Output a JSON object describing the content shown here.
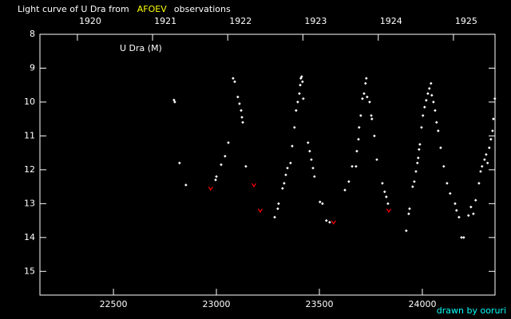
{
  "chart_data": {
    "type": "scatter",
    "title_parts": [
      {
        "text": "Light curve of U Dra from",
        "color": "#ffffff"
      },
      {
        "text": "AFOEV",
        "color": "#ffff00"
      },
      {
        "text": "observations",
        "color": "#ffffff"
      }
    ],
    "annotation": "U Dra (M)",
    "credit": "drawn by ooruri",
    "credit_color": "#00ffff",
    "xlim": [
      22143,
      24353
    ],
    "ylim": [
      15.7,
      8
    ],
    "xticks": [
      22500,
      23000,
      23500,
      24000
    ],
    "yticks": [
      8,
      9,
      10,
      11,
      12,
      13,
      14,
      15
    ],
    "x2ticks": [
      {
        "value": 22325,
        "label": "1920"
      },
      {
        "value": 22690,
        "label": "1921"
      },
      {
        "value": 23055,
        "label": "1922"
      },
      {
        "value": 23420,
        "label": "1923"
      },
      {
        "value": 23786,
        "label": "1924"
      },
      {
        "value": 24151,
        "label": "1925"
      }
    ],
    "series": [
      {
        "color": "#ffffff",
        "marker": "diamond",
        "x": [
          22794,
          22798,
          22821,
          22852,
          22996,
          23000,
          23023,
          23042,
          23058,
          23081,
          23089,
          23104,
          23112,
          23120,
          23124,
          23128,
          23143,
          23283,
          23298,
          23302,
          23321,
          23329,
          23337,
          23345,
          23360,
          23368,
          23379,
          23387,
          23395,
          23403,
          23407,
          23410,
          23414,
          23418,
          23422,
          23445,
          23453,
          23461,
          23469,
          23476,
          23503,
          23515,
          23534,
          23550,
          23624,
          23643,
          23659,
          23678,
          23682,
          23690,
          23693,
          23701,
          23709,
          23717,
          23724,
          23728,
          23732,
          23744,
          23752,
          23755,
          23767,
          23779,
          23806,
          23817,
          23825,
          23833,
          23922,
          23934,
          23938,
          23953,
          23961,
          23969,
          23976,
          23980,
          23984,
          23988,
          23996,
          24003,
          24011,
          24019,
          24027,
          24034,
          24042,
          24046,
          24054,
          24062,
          24069,
          24077,
          24089,
          24104,
          24120,
          24135,
          24159,
          24166,
          24178,
          24190,
          24201,
          24224,
          24236,
          24248,
          24259,
          24275,
          24283,
          24290,
          24302,
          24310,
          24317,
          24325,
          24333,
          24341,
          24345,
          24352
        ],
        "values": [
          9.94,
          10.0,
          11.8,
          12.45,
          12.3,
          12.2,
          11.85,
          11.6,
          11.2,
          9.3,
          9.4,
          9.85,
          10.05,
          10.25,
          10.45,
          10.6,
          11.9,
          13.4,
          13.15,
          13.0,
          12.55,
          12.4,
          12.15,
          11.95,
          11.8,
          11.3,
          10.75,
          10.25,
          10.0,
          9.75,
          9.5,
          9.3,
          9.25,
          9.4,
          9.9,
          11.2,
          11.45,
          11.7,
          11.95,
          12.2,
          12.95,
          13.0,
          13.5,
          13.55,
          12.6,
          12.35,
          11.9,
          11.9,
          11.45,
          11.1,
          10.75,
          10.4,
          9.9,
          9.75,
          9.45,
          9.3,
          9.85,
          10.0,
          10.4,
          10.5,
          11.0,
          11.7,
          12.4,
          12.65,
          12.8,
          13.0,
          13.8,
          13.3,
          13.15,
          12.5,
          12.35,
          12.05,
          11.8,
          11.65,
          11.4,
          11.25,
          10.75,
          10.4,
          10.15,
          9.95,
          9.75,
          9.6,
          9.45,
          9.8,
          10.0,
          10.25,
          10.6,
          10.85,
          11.35,
          11.9,
          12.4,
          12.7,
          13.0,
          13.2,
          13.4,
          14.0,
          14.0,
          13.35,
          13.1,
          13.3,
          12.9,
          12.4,
          12.05,
          11.9,
          11.7,
          11.55,
          11.8,
          11.35,
          11.1,
          10.85,
          10.5,
          9.9
        ]
      },
      {
        "color": "#ff0000",
        "marker": "v",
        "x": [
          22972,
          23182,
          23213,
          23569,
          23837
        ],
        "values": [
          12.55,
          12.45,
          13.2,
          13.55,
          13.2
        ]
      }
    ]
  }
}
